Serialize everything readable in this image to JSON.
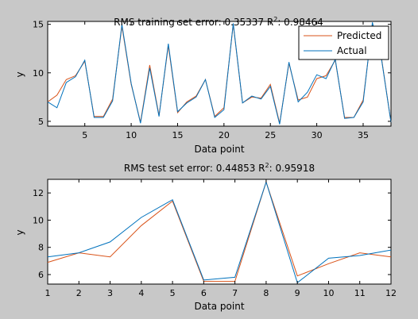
{
  "colors": {
    "figure_bg": "#c8c8c8",
    "axes_bg": "#ffffff",
    "predicted": "#d95319",
    "actual": "#0072bd"
  },
  "chart_data": [
    {
      "type": "line",
      "title": "RMS training set error: 0.35337  R",
      "title_sup": "2",
      "title_tail": ": 0.98464",
      "xlabel": "Data point",
      "ylabel": "y",
      "xlim": [
        1,
        38
      ],
      "ylim": [
        4.5,
        15.3
      ],
      "xticks": [
        5,
        10,
        15,
        20,
        25,
        30,
        35
      ],
      "yticks": [
        5,
        10,
        15
      ],
      "legend": {
        "position": "top-right",
        "entries": [
          "Predicted",
          "Actual"
        ]
      },
      "x": [
        1,
        2,
        3,
        4,
        5,
        6,
        7,
        8,
        9,
        10,
        11,
        12,
        13,
        14,
        15,
        16,
        17,
        18,
        19,
        20,
        21,
        22,
        23,
        24,
        25,
        26,
        27,
        28,
        29,
        30,
        31,
        32,
        33,
        34,
        35,
        36,
        37,
        38
      ],
      "series": [
        {
          "name": "Predicted",
          "values": [
            7.0,
            7.7,
            9.3,
            9.7,
            11.2,
            5.5,
            5.5,
            7.3,
            14.8,
            8.8,
            4.9,
            10.8,
            5.6,
            12.8,
            5.9,
            7.0,
            7.6,
            9.3,
            5.5,
            6.4,
            15.0,
            6.9,
            7.5,
            7.4,
            8.8,
            4.8,
            11.0,
            7.2,
            7.5,
            9.4,
            9.7,
            11.3,
            5.4,
            5.4,
            7.2,
            15.0,
            11.4,
            4.9
          ]
        },
        {
          "name": "Actual",
          "values": [
            7.0,
            6.4,
            9.0,
            9.6,
            11.3,
            5.4,
            5.4,
            7.1,
            15.0,
            8.9,
            4.8,
            10.5,
            5.5,
            13.0,
            6.0,
            6.9,
            7.5,
            9.3,
            5.4,
            6.2,
            15.1,
            6.9,
            7.6,
            7.3,
            8.6,
            4.7,
            11.1,
            7.0,
            8.0,
            9.8,
            9.4,
            11.4,
            5.3,
            5.4,
            7.0,
            15.2,
            11.3,
            4.9
          ]
        }
      ]
    },
    {
      "type": "line",
      "title": "RMS test set error: 0.44853  R",
      "title_sup": "2",
      "title_tail": ": 0.95918",
      "xlabel": "Data point",
      "ylabel": "y",
      "xlim": [
        1,
        12
      ],
      "ylim": [
        5.3,
        13.0
      ],
      "xticks": [
        1,
        2,
        3,
        4,
        5,
        6,
        7,
        8,
        9,
        10,
        11,
        12
      ],
      "yticks": [
        6,
        8,
        10,
        12
      ],
      "x": [
        1,
        2,
        3,
        4,
        5,
        6,
        7,
        8,
        9,
        10,
        11,
        12
      ],
      "series": [
        {
          "name": "Predicted",
          "values": [
            6.9,
            7.6,
            7.3,
            9.6,
            11.4,
            5.5,
            5.5,
            12.8,
            5.9,
            6.8,
            7.6,
            7.3
          ]
        },
        {
          "name": "Actual",
          "values": [
            7.3,
            7.6,
            8.4,
            10.2,
            11.5,
            5.6,
            5.8,
            12.8,
            5.4,
            7.2,
            7.4,
            7.8
          ]
        }
      ]
    }
  ]
}
